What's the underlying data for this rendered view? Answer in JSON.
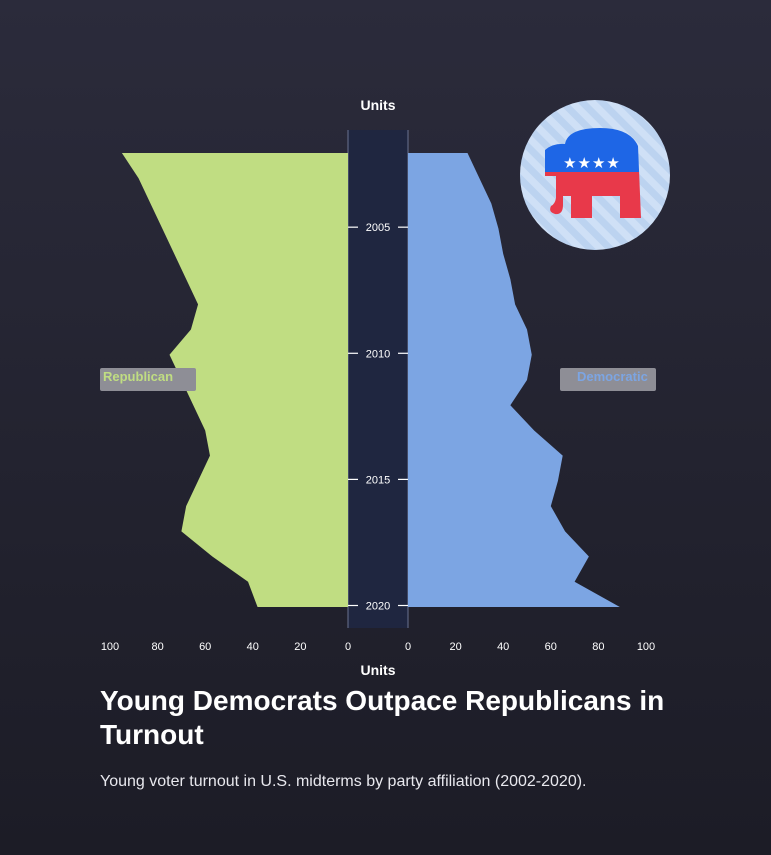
{
  "title": "Young Democrats Outpace Republicans in Turnout",
  "subtitle": "Young voter turnout in U.S. midterms by party affiliation (2002-2020).",
  "colors": {
    "republican": "#c0dd82",
    "democratic": "#7ca5e3",
    "center_band": "#1f2640",
    "legend_box": "#8e8e96"
  },
  "logo_icon": "republican-elephant-icon",
  "chart_data": {
    "type": "area",
    "orientation": "butterfly",
    "y_axis": {
      "label": "",
      "range": [
        2002,
        2020
      ],
      "ticks": [
        2005,
        2010,
        2015,
        2020
      ]
    },
    "x_axis_left": {
      "title": "Units",
      "range": [
        100,
        0
      ],
      "ticks": [
        100,
        80,
        60,
        40,
        20,
        0
      ]
    },
    "x_axis_right": {
      "title": "Units",
      "range": [
        0,
        100
      ],
      "ticks": [
        0,
        20,
        40,
        60,
        80,
        100
      ]
    },
    "top_axis_title": "Units",
    "bottom_axis_title": "Units",
    "years": [
      2002,
      2003,
      2004,
      2005,
      2006,
      2007,
      2008,
      2009,
      2010,
      2011,
      2012,
      2013,
      2014,
      2015,
      2016,
      2017,
      2018,
      2019,
      2020
    ],
    "series": [
      {
        "name": "Republican",
        "side": "left",
        "values": [
          95,
          88,
          83,
          78,
          73,
          68,
          63,
          66,
          75,
          70,
          65,
          60,
          58,
          63,
          68,
          70,
          57,
          42,
          38
        ]
      },
      {
        "name": "Democratic",
        "side": "right",
        "values": [
          25,
          30,
          35,
          38,
          40,
          43,
          45,
          50,
          52,
          50,
          43,
          53,
          65,
          63,
          60,
          66,
          76,
          70,
          89
        ]
      }
    ],
    "legend": [
      {
        "name": "Republican",
        "position": "left"
      },
      {
        "name": "Democratic",
        "position": "right"
      }
    ]
  }
}
